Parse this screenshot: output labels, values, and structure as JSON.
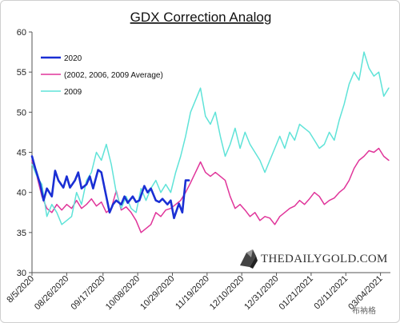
{
  "chart_data": {
    "type": "line",
    "title": "GDX Correction Analog",
    "xlabel": "",
    "ylabel": "",
    "ylim": [
      30,
      60
    ],
    "yticks": [
      30,
      35,
      40,
      45,
      50,
      55,
      60
    ],
    "xlim": [
      "2020-08-05",
      "2021-03-10"
    ],
    "xticks": [
      "8/5/2020",
      "08/26/2020",
      "09/17/2020",
      "10/08/2020",
      "10/29/2020",
      "11/19/2020",
      "12/10/2020",
      "12/31/2020",
      "01/21/2021",
      "02/11/2021",
      "03/04/2021"
    ],
    "xtick_dates": [
      "2020-08-05",
      "2020-08-26",
      "2020-09-17",
      "2020-10-08",
      "2020-10-29",
      "2020-11-19",
      "2020-12-10",
      "2020-12-31",
      "2021-01-21",
      "2021-02-11",
      "2021-03-04"
    ],
    "grid": false,
    "legend": "top-left",
    "series": [
      {
        "name": "2020",
        "color": "#1a2fd4",
        "width": 2.6,
        "x": [
          "2020-08-05",
          "2020-08-07",
          "2020-08-10",
          "2020-08-12",
          "2020-08-14",
          "2020-08-17",
          "2020-08-19",
          "2020-08-21",
          "2020-08-24",
          "2020-08-26",
          "2020-08-28",
          "2020-08-31",
          "2020-09-02",
          "2020-09-04",
          "2020-09-07",
          "2020-09-09",
          "2020-09-11",
          "2020-09-14",
          "2020-09-16",
          "2020-09-18",
          "2020-09-21",
          "2020-09-23",
          "2020-09-25",
          "2020-09-28",
          "2020-09-30",
          "2020-10-02",
          "2020-10-05",
          "2020-10-07",
          "2020-10-09",
          "2020-10-12",
          "2020-10-14",
          "2020-10-16",
          "2020-10-19",
          "2020-10-21",
          "2020-10-23",
          "2020-10-26",
          "2020-10-28",
          "2020-10-30",
          "2020-11-02",
          "2020-11-04",
          "2020-11-06",
          "2020-11-08"
        ],
        "y": [
          44.5,
          43.0,
          41.0,
          39.0,
          40.5,
          39.5,
          42.7,
          41.5,
          40.6,
          42.0,
          40.6,
          41.5,
          42.5,
          40.5,
          41.0,
          42.0,
          40.5,
          42.8,
          42.5,
          40.5,
          37.5,
          38.5,
          39.0,
          38.5,
          39.5,
          38.7,
          39.5,
          38.8,
          39.0,
          40.8,
          40.0,
          40.5,
          39.0,
          38.8,
          39.2,
          38.5,
          39.0,
          36.8,
          38.6,
          37.5,
          41.5,
          41.5
        ]
      },
      {
        "name": "(2002, 2006, 2009 Average)",
        "color": "#e0359a",
        "width": 1.5,
        "x": [
          "2020-08-05",
          "2020-08-08",
          "2020-08-11",
          "2020-08-14",
          "2020-08-17",
          "2020-08-20",
          "2020-08-23",
          "2020-08-26",
          "2020-08-29",
          "2020-09-01",
          "2020-09-04",
          "2020-09-07",
          "2020-09-10",
          "2020-09-13",
          "2020-09-16",
          "2020-09-19",
          "2020-09-22",
          "2020-09-25",
          "2020-09-28",
          "2020-10-01",
          "2020-10-04",
          "2020-10-07",
          "2020-10-10",
          "2020-10-13",
          "2020-10-16",
          "2020-10-19",
          "2020-10-22",
          "2020-10-25",
          "2020-10-28",
          "2020-10-31",
          "2020-11-03",
          "2020-11-06",
          "2020-11-09",
          "2020-11-12",
          "2020-11-15",
          "2020-11-18",
          "2020-11-21",
          "2020-11-24",
          "2020-11-27",
          "2020-11-30",
          "2020-12-03",
          "2020-12-06",
          "2020-12-09",
          "2020-12-12",
          "2020-12-15",
          "2020-12-18",
          "2020-12-21",
          "2020-12-24",
          "2020-12-27",
          "2020-12-30",
          "2021-01-02",
          "2021-01-05",
          "2021-01-08",
          "2021-01-11",
          "2021-01-14",
          "2021-01-17",
          "2021-01-20",
          "2021-01-23",
          "2021-01-26",
          "2021-01-29",
          "2021-02-01",
          "2021-02-04",
          "2021-02-07",
          "2021-02-10",
          "2021-02-13",
          "2021-02-16",
          "2021-02-19",
          "2021-02-22",
          "2021-02-25",
          "2021-02-28",
          "2021-03-03",
          "2021-03-06",
          "2021-03-09"
        ],
        "y": [
          44.0,
          42.0,
          39.5,
          38.0,
          37.5,
          38.5,
          37.8,
          38.5,
          38.0,
          39.0,
          38.0,
          38.5,
          39.2,
          38.3,
          38.8,
          37.5,
          38.0,
          40.2,
          37.8,
          38.2,
          37.5,
          36.5,
          35.0,
          35.5,
          36.0,
          37.5,
          37.0,
          37.8,
          38.0,
          38.5,
          39.0,
          40.0,
          41.2,
          42.5,
          43.8,
          42.5,
          42.0,
          42.5,
          42.0,
          41.5,
          39.5,
          38.0,
          38.5,
          37.8,
          37.0,
          37.5,
          36.5,
          37.0,
          36.8,
          36.0,
          37.0,
          37.5,
          38.0,
          38.3,
          39.0,
          38.5,
          39.2,
          40.0,
          39.5,
          38.5,
          39.0,
          39.3,
          40.0,
          40.5,
          41.5,
          43.0,
          44.0,
          44.5,
          45.2,
          45.0,
          45.5,
          44.5,
          44.0
        ]
      },
      {
        "name": "2009",
        "color": "#5fe3d8",
        "width": 1.5,
        "x": [
          "2020-08-05",
          "2020-08-08",
          "2020-08-11",
          "2020-08-14",
          "2020-08-17",
          "2020-08-20",
          "2020-08-23",
          "2020-08-26",
          "2020-08-29",
          "2020-09-01",
          "2020-09-04",
          "2020-09-07",
          "2020-09-10",
          "2020-09-13",
          "2020-09-16",
          "2020-09-19",
          "2020-09-22",
          "2020-09-25",
          "2020-09-28",
          "2020-10-01",
          "2020-10-04",
          "2020-10-07",
          "2020-10-10",
          "2020-10-13",
          "2020-10-16",
          "2020-10-19",
          "2020-10-22",
          "2020-10-25",
          "2020-10-28",
          "2020-10-31",
          "2020-11-03",
          "2020-11-06",
          "2020-11-09",
          "2020-11-12",
          "2020-11-15",
          "2020-11-18",
          "2020-11-21",
          "2020-11-24",
          "2020-11-27",
          "2020-11-30",
          "2020-12-03",
          "2020-12-06",
          "2020-12-09",
          "2020-12-12",
          "2020-12-15",
          "2020-12-18",
          "2020-12-21",
          "2020-12-24",
          "2020-12-27",
          "2020-12-30",
          "2021-01-02",
          "2021-01-05",
          "2021-01-08",
          "2021-01-11",
          "2021-01-14",
          "2021-01-17",
          "2021-01-20",
          "2021-01-23",
          "2021-01-26",
          "2021-01-29",
          "2021-02-01",
          "2021-02-04",
          "2021-02-07",
          "2021-02-10",
          "2021-02-13",
          "2021-02-16",
          "2021-02-19",
          "2021-02-22",
          "2021-02-25",
          "2021-02-28",
          "2021-03-03",
          "2021-03-06",
          "2021-03-09"
        ],
        "y": [
          43.5,
          42.0,
          41.0,
          37.0,
          38.5,
          37.5,
          36.0,
          36.5,
          37.0,
          40.0,
          38.5,
          41.5,
          42.5,
          45.0,
          44.0,
          46.0,
          43.5,
          40.0,
          38.0,
          39.5,
          38.0,
          37.5,
          40.5,
          39.0,
          40.5,
          41.5,
          40.0,
          41.0,
          40.0,
          42.5,
          44.5,
          47.0,
          50.0,
          51.5,
          53.0,
          49.5,
          48.5,
          50.0,
          47.0,
          44.5,
          46.0,
          48.0,
          45.5,
          47.5,
          46.0,
          45.0,
          44.0,
          42.5,
          44.0,
          45.5,
          47.0,
          45.5,
          47.5,
          46.5,
          48.5,
          48.0,
          47.5,
          46.5,
          45.5,
          46.0,
          47.5,
          46.5,
          49.0,
          51.0,
          53.5,
          55.0,
          54.0,
          57.5,
          55.5,
          54.5,
          55.0,
          52.0,
          53.0
        ]
      }
    ]
  },
  "watermark": {
    "text": "THEDAILYGOLD.COM",
    "overlay": "布衲格"
  }
}
